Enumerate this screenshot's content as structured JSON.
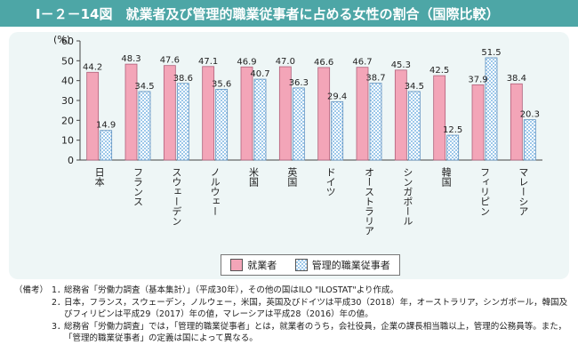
{
  "title": "Ⅰ－２－14図　就業者及び管理的職業従事者に占める女性の割合（国際比較）",
  "colors": {
    "title_bg": "#4da6a6",
    "panel_bg": "#eef6f6",
    "series1": "#f3a5b8",
    "series2": "#9dc8ea"
  },
  "chart_data": {
    "type": "bar",
    "title": "",
    "ylabel": "(%)",
    "ylim": [
      0,
      60
    ],
    "yticks": [
      0,
      10,
      20,
      30,
      40,
      50,
      60
    ],
    "categories": [
      "日本",
      "フランス",
      "スウェーデン",
      "ノルウェー",
      "米国",
      "英国",
      "ドイツ",
      "オーストラリア",
      "シンガポール",
      "韓国",
      "フィリピン",
      "マレーシア"
    ],
    "series": [
      {
        "name": "就業者",
        "values": [
          44.2,
          48.3,
          47.6,
          47.1,
          46.9,
          47.0,
          46.6,
          46.7,
          45.3,
          42.5,
          37.9,
          38.4
        ]
      },
      {
        "name": "管理的職業従事者",
        "values": [
          14.9,
          34.5,
          38.6,
          35.6,
          40.7,
          36.3,
          29.4,
          38.7,
          34.5,
          12.5,
          51.5,
          20.3
        ]
      }
    ],
    "value_labels": [
      [
        "44.2",
        "48.3",
        "47.6",
        "47.1",
        "46.9",
        "47.0",
        "46.6",
        "46.7",
        "45.3",
        "42.5",
        "37.9",
        "38.4"
      ],
      [
        "14.9",
        "34.5",
        "38.6",
        "35.6",
        "40.7",
        "36.3",
        "29.4",
        "38.7",
        "34.5",
        "12.5",
        "51.5",
        "20.3"
      ]
    ],
    "legend": [
      "就業者",
      "管理的職業従事者"
    ]
  },
  "notes": {
    "lead": "（備考）",
    "items": [
      {
        "num": "1．",
        "text": "総務省「労働力調査（基本集計）」（平成30年），その他の国はILO \"ILOSTAT\"より作成。"
      },
      {
        "num": "2．",
        "text": "日本，フランス，スウェーデン，ノルウェー，米国，英国及びドイツは平成30（2018）年，オーストラリア，シンガポール，韓国及びフィリピンは平成29（2017）年の値，マレーシアは平成28（2016）年の値。"
      },
      {
        "num": "3．",
        "text": "総務省「労働力調査」では，「管理的職業従事者」とは，就業者のうち，会社役員，企業の課長相当職以上，管理的公務員等。また，「管理的職業従事者」の定義は国によって異なる。"
      }
    ]
  }
}
